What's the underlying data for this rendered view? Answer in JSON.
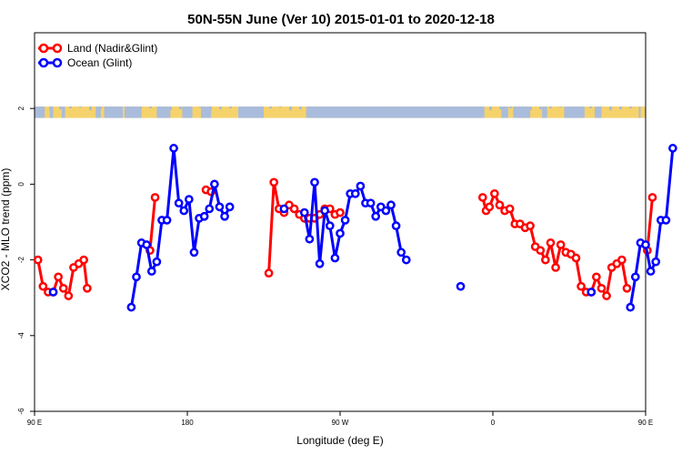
{
  "chart_data": {
    "type": "line",
    "title": "50N-55N June (Ver 10)   2015-01-01 to 2020-12-18",
    "xlabel": "Longitude (deg E)",
    "ylabel": "XCO2 - MLO trend (ppm)",
    "xlim": [
      90,
      450
    ],
    "ylim": [
      -6,
      4
    ],
    "x_ticks": [
      {
        "value": 90,
        "label": "90 E"
      },
      {
        "value": 180,
        "label": "180"
      },
      {
        "value": 270,
        "label": "90 W"
      },
      {
        "value": 360,
        "label": "0"
      },
      {
        "value": 450,
        "label": "90 E"
      },
      {
        "value": 540,
        "label": "180"
      }
    ],
    "y_ticks": [
      -6,
      -4,
      -2,
      0,
      2
    ],
    "grid": false,
    "legend_position": "top-left",
    "land_sea_strip": {
      "y_range": [
        1.75,
        2.05
      ],
      "land_color": "#f5d26b",
      "ocean_color": "#a9bcdc"
    },
    "series": [
      {
        "name": "Land (Nadir&Glint)",
        "color": "#ff0000",
        "points": [
          [
            92,
            -2.0
          ],
          [
            95,
            -2.7
          ],
          [
            98,
            -2.85
          ],
          [
            101,
            -2.85
          ],
          [
            104,
            -2.45
          ],
          [
            107,
            -2.75
          ],
          [
            110,
            -2.95
          ],
          [
            113,
            -2.2
          ],
          [
            116,
            -2.1
          ],
          [
            119,
            -2.0
          ],
          [
            121,
            -2.75
          ],
          null,
          [
            158,
            -1.75
          ],
          [
            161,
            -0.35
          ],
          null,
          [
            191,
            -0.15
          ],
          [
            194,
            -0.2
          ],
          null,
          [
            228,
            -2.35
          ],
          [
            231,
            0.05
          ],
          [
            234,
            -0.65
          ],
          [
            237,
            -0.75
          ],
          [
            240,
            -0.55
          ],
          [
            243,
            -0.65
          ],
          [
            246,
            -0.8
          ],
          [
            249,
            -0.9
          ],
          [
            252,
            -0.9
          ],
          [
            255,
            -0.9
          ],
          [
            258,
            -0.8
          ],
          [
            261,
            -0.65
          ],
          [
            264,
            -0.65
          ],
          [
            267,
            -0.8
          ],
          [
            270,
            -0.75
          ],
          null,
          [
            354,
            -0.35
          ],
          [
            356,
            -0.7
          ],
          [
            358,
            -0.6
          ],
          [
            361,
            -0.25
          ],
          [
            364,
            -0.55
          ],
          [
            367,
            -0.7
          ],
          [
            370,
            -0.65
          ],
          [
            373,
            -1.05
          ],
          [
            376,
            -1.05
          ],
          [
            379,
            -1.15
          ],
          [
            382,
            -1.1
          ],
          [
            385,
            -1.65
          ],
          [
            388,
            -1.75
          ],
          [
            391,
            -2.0
          ],
          [
            394,
            -1.55
          ],
          [
            397,
            -2.2
          ],
          [
            400,
            -1.6
          ],
          [
            403,
            -1.8
          ],
          [
            406,
            -1.85
          ],
          [
            409,
            -1.95
          ],
          [
            412,
            -2.7
          ],
          [
            415,
            -2.85
          ],
          [
            418,
            -2.85
          ],
          [
            421,
            -2.45
          ],
          [
            424,
            -2.75
          ],
          [
            427,
            -2.95
          ],
          [
            430,
            -2.2
          ],
          [
            433,
            -2.1
          ],
          [
            436,
            -2.0
          ],
          [
            439,
            -2.75
          ],
          null,
          [
            451,
            -1.75
          ],
          [
            454,
            -0.35
          ]
        ]
      },
      {
        "name": "Ocean (Glint)",
        "color": "#0000ff",
        "points": [
          [
            101,
            -2.85
          ],
          null,
          [
            147,
            -3.25
          ],
          [
            150,
            -2.45
          ],
          [
            153,
            -1.55
          ],
          [
            156,
            -1.6
          ],
          [
            159,
            -2.3
          ],
          [
            162,
            -2.05
          ],
          [
            165,
            -0.95
          ],
          [
            168,
            -0.95
          ],
          [
            172,
            0.95
          ],
          [
            175,
            -0.5
          ],
          [
            178,
            -0.7
          ],
          [
            181,
            -0.4
          ],
          [
            184,
            -1.8
          ],
          [
            187,
            -0.9
          ],
          [
            190,
            -0.85
          ],
          [
            193,
            -0.65
          ],
          [
            196,
            0.0
          ],
          [
            199,
            -0.6
          ],
          [
            202,
            -0.85
          ],
          [
            205,
            -0.6
          ],
          null,
          [
            237,
            -0.65
          ],
          null,
          [
            249,
            -0.75
          ],
          [
            252,
            -1.45
          ],
          [
            255,
            0.05
          ],
          [
            258,
            -2.1
          ],
          [
            261,
            -0.7
          ],
          [
            264,
            -1.1
          ],
          [
            267,
            -1.95
          ],
          [
            270,
            -1.3
          ],
          [
            273,
            -0.95
          ],
          [
            276,
            -0.25
          ],
          [
            279,
            -0.25
          ],
          [
            282,
            -0.05
          ],
          [
            285,
            -0.5
          ],
          [
            288,
            -0.5
          ],
          [
            291,
            -0.85
          ],
          [
            294,
            -0.6
          ],
          [
            297,
            -0.7
          ],
          [
            300,
            -0.55
          ],
          [
            303,
            -1.1
          ],
          [
            306,
            -1.8
          ],
          [
            309,
            -2.0
          ],
          null,
          [
            341,
            -2.7
          ],
          null,
          [
            418,
            -2.85
          ],
          null,
          [
            441,
            -3.25
          ],
          [
            444,
            -2.45
          ],
          [
            447,
            -1.55
          ],
          [
            450,
            -1.6
          ],
          [
            453,
            -2.3
          ],
          [
            456,
            -2.05
          ],
          [
            459,
            -0.95
          ],
          [
            462,
            -0.95
          ],
          [
            466,
            0.95
          ]
        ]
      }
    ]
  }
}
